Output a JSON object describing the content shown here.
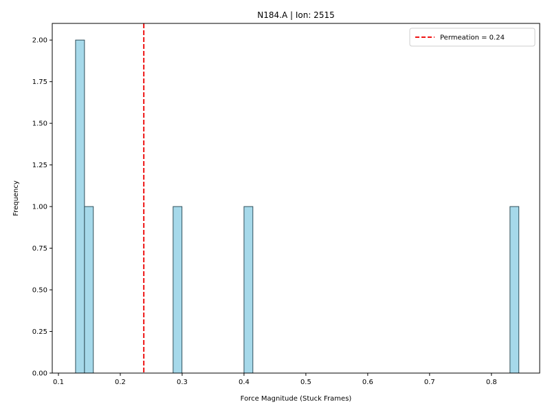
{
  "chart_data": {
    "type": "bar",
    "title": "N184.A | Ion: 2515",
    "xlabel": "Force Magnitude (Stuck Frames)",
    "ylabel": "Frequency",
    "xlim": [
      0.09,
      0.878
    ],
    "ylim": [
      0,
      2.1
    ],
    "xticks": [
      0.1,
      0.2,
      0.3,
      0.4,
      0.5,
      0.6,
      0.7,
      0.8
    ],
    "xtick_labels": [
      "0.1",
      "0.2",
      "0.3",
      "0.4",
      "0.5",
      "0.6",
      "0.7",
      "0.8"
    ],
    "yticks": [
      0,
      0.25,
      0.5,
      0.75,
      1.0,
      1.25,
      1.5,
      1.75,
      2.0
    ],
    "ytick_labels": [
      "0.00",
      "0.25",
      "0.50",
      "0.75",
      "1.00",
      "1.25",
      "1.50",
      "1.75",
      "2.00"
    ],
    "bins": [
      {
        "x0": 0.1277,
        "x1": 0.1421,
        "count": 2
      },
      {
        "x0": 0.1421,
        "x1": 0.1564,
        "count": 1
      },
      {
        "x0": 0.2854,
        "x1": 0.2997,
        "count": 1
      },
      {
        "x0": 0.4,
        "x1": 0.4143,
        "count": 1
      },
      {
        "x0": 0.83,
        "x1": 0.8443,
        "count": 1
      }
    ],
    "bar_color": "#a6d9ea",
    "bar_edge_color": "#2f4f5a",
    "reference_line": {
      "x": 0.238,
      "color": "#ee1111",
      "style": "dashed"
    },
    "legend": {
      "position": "top-right",
      "entries": [
        {
          "label": "Permeation = 0.24",
          "color": "#ee1111",
          "style": "dashed"
        }
      ]
    },
    "grid": false
  }
}
